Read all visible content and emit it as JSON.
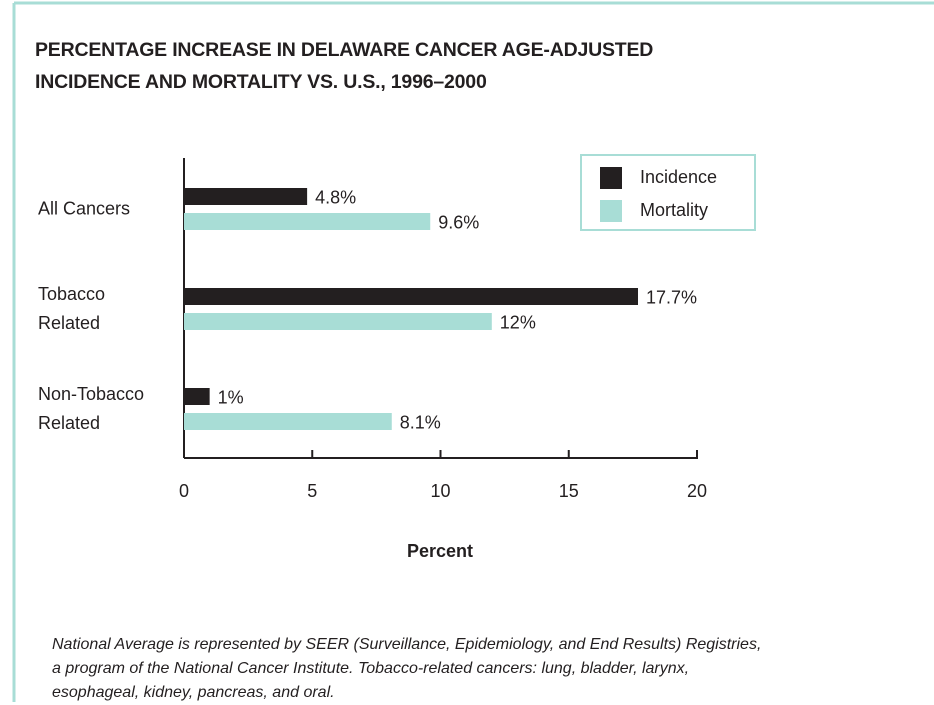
{
  "chart_data": {
    "type": "bar",
    "title": "PERCENTAGE INCREASE IN DELAWARE CANCER AGE-ADJUSTED\nINCIDENCE AND MORTALITY VS. U.S., 1996–2000",
    "categories": [
      "All Cancers",
      "Tobacco\nRelated",
      "Non-Tobacco\nRelated"
    ],
    "series": [
      {
        "name": "Incidence",
        "color": "#231f20",
        "values": [
          4.8,
          17.7,
          1
        ],
        "value_labels": [
          "4.8%",
          "17.7%",
          "1%"
        ]
      },
      {
        "name": "Mortality",
        "color": "#a8ddd6",
        "values": [
          9.6,
          12,
          8.1
        ],
        "value_labels": [
          "9.6%",
          "12%",
          "8.1%"
        ]
      }
    ],
    "xlim": [
      0,
      20
    ],
    "xticks": [
      0,
      5,
      10,
      15,
      20
    ],
    "x_label": "Percent",
    "legend": "top-right",
    "note": "National Average is represented by SEER (Surveillance, Epidemiology, and End Results) Registries,\na program of the National Cancer Institute. Tobacco-related cancers: lung, bladder, larynx,\nesophageal, kidney, pancreas, and oral."
  }
}
